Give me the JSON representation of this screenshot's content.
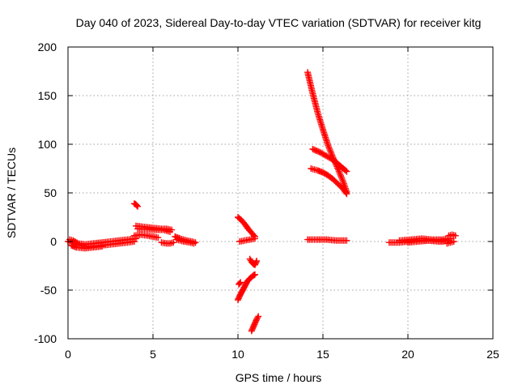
{
  "chart_data": {
    "type": "scatter",
    "title": "Day 040 of 2023, Sidereal Day-to-day VTEC variation (SDTVAR) for receiver kitg",
    "xlabel": "GPS time / hours",
    "ylabel": "SDTVAR / TECUs",
    "xlim": [
      0,
      25
    ],
    "ylim": [
      -100,
      200
    ],
    "xticks": [
      0,
      5,
      10,
      15,
      20,
      25
    ],
    "yticks": [
      -100,
      -50,
      0,
      50,
      100,
      150,
      200
    ],
    "grid": true,
    "marker": "plus",
    "colors": {
      "series": "#ff0000",
      "grid": "#a0a0a0",
      "axis": "#000000"
    },
    "segments": [
      [
        [
          0.0,
          0
        ],
        [
          0.2,
          -1
        ],
        [
          0.5,
          -3
        ],
        [
          1.0,
          -5
        ],
        [
          1.5,
          -5
        ],
        [
          2.0,
          -4
        ],
        [
          2.5,
          -3
        ],
        [
          3.0,
          -2
        ],
        [
          3.5,
          -1
        ],
        [
          3.9,
          0
        ]
      ],
      [
        [
          0.1,
          2
        ],
        [
          0.3,
          1
        ],
        [
          0.6,
          -2
        ],
        [
          1.0,
          -3
        ],
        [
          1.5,
          -2
        ],
        [
          2.0,
          -1
        ],
        [
          2.5,
          0
        ],
        [
          3.0,
          1
        ],
        [
          3.5,
          2
        ],
        [
          4.0,
          3
        ]
      ],
      [
        [
          0.2,
          -4
        ],
        [
          0.5,
          -6
        ],
        [
          1.0,
          -7
        ],
        [
          1.5,
          -6
        ],
        [
          2.0,
          -5
        ]
      ],
      [
        [
          3.9,
          39
        ],
        [
          4.0,
          38
        ],
        [
          4.1,
          36
        ]
      ],
      [
        [
          3.9,
          6
        ],
        [
          4.3,
          7
        ],
        [
          4.7,
          6
        ],
        [
          5.0,
          5
        ],
        [
          5.3,
          4
        ]
      ],
      [
        [
          4.0,
          16
        ],
        [
          4.5,
          15
        ],
        [
          5.0,
          14
        ],
        [
          5.5,
          13
        ],
        [
          5.8,
          13
        ],
        [
          6.1,
          12
        ]
      ],
      [
        [
          4.1,
          13
        ],
        [
          4.6,
          13
        ],
        [
          5.1,
          12
        ],
        [
          5.6,
          12
        ],
        [
          6.0,
          10
        ]
      ],
      [
        [
          5.5,
          -1
        ],
        [
          5.8,
          -2
        ],
        [
          6.0,
          -2
        ],
        [
          6.2,
          -1
        ]
      ],
      [
        [
          6.3,
          5
        ],
        [
          6.6,
          3
        ],
        [
          7.0,
          1
        ],
        [
          7.3,
          0
        ],
        [
          7.5,
          -1
        ]
      ],
      [
        [
          6.4,
          2
        ],
        [
          6.8,
          0
        ],
        [
          7.2,
          -1
        ],
        [
          7.4,
          -2
        ]
      ],
      [
        [
          10.0,
          25
        ],
        [
          10.2,
          22
        ],
        [
          10.4,
          18
        ],
        [
          10.6,
          13
        ],
        [
          10.8,
          9
        ],
        [
          11.0,
          5
        ]
      ],
      [
        [
          10.1,
          0
        ],
        [
          10.4,
          1
        ],
        [
          10.7,
          2
        ],
        [
          11.0,
          3
        ]
      ],
      [
        [
          10.05,
          -44
        ],
        [
          10.15,
          -42
        ]
      ],
      [
        [
          10.0,
          -60
        ],
        [
          10.1,
          -56
        ],
        [
          10.25,
          -51
        ],
        [
          10.4,
          -46
        ],
        [
          10.55,
          -41
        ],
        [
          10.7,
          -38
        ],
        [
          10.9,
          -35
        ],
        [
          11.0,
          -34
        ]
      ],
      [
        [
          10.7,
          -18
        ],
        [
          10.8,
          -21
        ],
        [
          10.9,
          -23
        ],
        [
          11.0,
          -24
        ],
        [
          11.1,
          -20
        ]
      ],
      [
        [
          10.8,
          -92
        ],
        [
          10.9,
          -88
        ],
        [
          11.0,
          -84
        ],
        [
          11.1,
          -80
        ],
        [
          11.2,
          -77
        ]
      ],
      [
        [
          14.1,
          174
        ],
        [
          14.4,
          152
        ],
        [
          14.7,
          132
        ],
        [
          15.0,
          115
        ],
        [
          15.3,
          99
        ],
        [
          15.6,
          86
        ],
        [
          15.9,
          74
        ],
        [
          16.2,
          61
        ],
        [
          16.4,
          51
        ]
      ],
      [
        [
          14.4,
          95
        ],
        [
          14.8,
          92
        ],
        [
          15.2,
          88
        ],
        [
          15.6,
          84
        ],
        [
          16.0,
          78
        ],
        [
          16.4,
          72
        ]
      ],
      [
        [
          14.3,
          75
        ],
        [
          14.7,
          73
        ],
        [
          15.0,
          71
        ],
        [
          15.3,
          68
        ],
        [
          15.6,
          64
        ],
        [
          15.9,
          59
        ],
        [
          16.2,
          54
        ],
        [
          16.4,
          49
        ]
      ],
      [
        [
          14.1,
          2
        ],
        [
          14.6,
          2
        ],
        [
          15.2,
          2
        ],
        [
          15.8,
          1
        ],
        [
          16.4,
          1
        ]
      ],
      [
        [
          18.9,
          -1
        ],
        [
          19.5,
          -1
        ],
        [
          20.0,
          0
        ],
        [
          20.5,
          1
        ],
        [
          21.0,
          1
        ],
        [
          21.5,
          1
        ],
        [
          22.0,
          0
        ],
        [
          22.4,
          1
        ]
      ],
      [
        [
          19.5,
          1
        ],
        [
          20.2,
          2
        ],
        [
          20.8,
          3
        ],
        [
          21.4,
          2
        ],
        [
          22.0,
          2
        ],
        [
          22.5,
          3
        ]
      ],
      [
        [
          20.0,
          -1
        ],
        [
          20.6,
          0
        ],
        [
          21.2,
          1
        ],
        [
          21.8,
          0
        ],
        [
          22.3,
          1
        ]
      ],
      [
        [
          22.4,
          6
        ],
        [
          22.6,
          7
        ],
        [
          22.8,
          6
        ]
      ],
      [
        [
          22.3,
          -2
        ],
        [
          22.5,
          -1
        ],
        [
          22.7,
          0
        ]
      ]
    ]
  }
}
